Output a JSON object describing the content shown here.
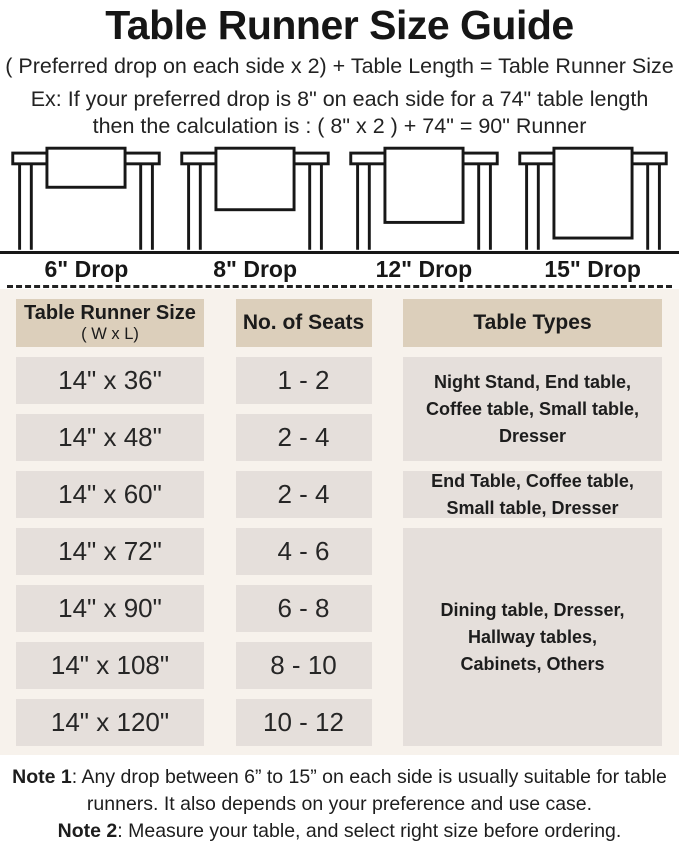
{
  "title": "Table Runner Size Guide",
  "formula": "( Preferred drop on each side x 2) + Table Length = Table Runner Size",
  "example_line1": "Ex: If your preferred drop is 8\" on each side for a 74\" table length",
  "example_line2": "then the calculation is : ( 8\" x 2 ) + 74\" = 90\" Runner",
  "illustrations": [
    {
      "label": "6\" Drop",
      "drop_inches": 6
    },
    {
      "label": "8\" Drop",
      "drop_inches": 8
    },
    {
      "label": "12\" Drop",
      "drop_inches": 12
    },
    {
      "label": "15\" Drop",
      "drop_inches": 15
    }
  ],
  "table": {
    "headers": {
      "size_line1": "Table Runner Size",
      "size_line2": "( W x L)",
      "seats": "No. of Seats",
      "types": "Table Types"
    },
    "rows": [
      {
        "size": "14\" x 36\"",
        "seats": "1 - 2"
      },
      {
        "size": "14\" x 48\"",
        "seats": "2 - 4"
      },
      {
        "size": "14\" x 60\"",
        "seats": "2 - 4"
      },
      {
        "size": "14\" x 72\"",
        "seats": "4 - 6"
      },
      {
        "size": "14\" x 90\"",
        "seats": "6 - 8"
      },
      {
        "size": "14\" x 108\"",
        "seats": "8 - 10"
      },
      {
        "size": "14\" x 120\"",
        "seats": "10 - 12"
      }
    ],
    "type_groups": [
      {
        "text": "Night Stand, End table, Coffee table, Small table, Dresser",
        "row_span": "rows 1-2"
      },
      {
        "text": "End Table, Coffee table, Small table, Dresser",
        "row_span": "row 3"
      },
      {
        "text": "Dining table, Dresser, Hallway tables, Cabinets, Others",
        "row_span": "rows 4-7"
      }
    ]
  },
  "notes": [
    {
      "label": "Note 1",
      "text": ": Any drop between 6” to 15” on each side is usually suitable for table runners. It also depends on your preference and use case."
    },
    {
      "label": "Note 2",
      "text": ": Measure your table, and select right size before ordering."
    }
  ],
  "colors": {
    "header_cell_bg": "#dccfbb",
    "data_cell_bg": "#e5dfdb",
    "section_bg": "#f7f2ec",
    "page_bg": "#ffffff",
    "line_color": "#171717",
    "text_color": "#1b1b1b"
  }
}
